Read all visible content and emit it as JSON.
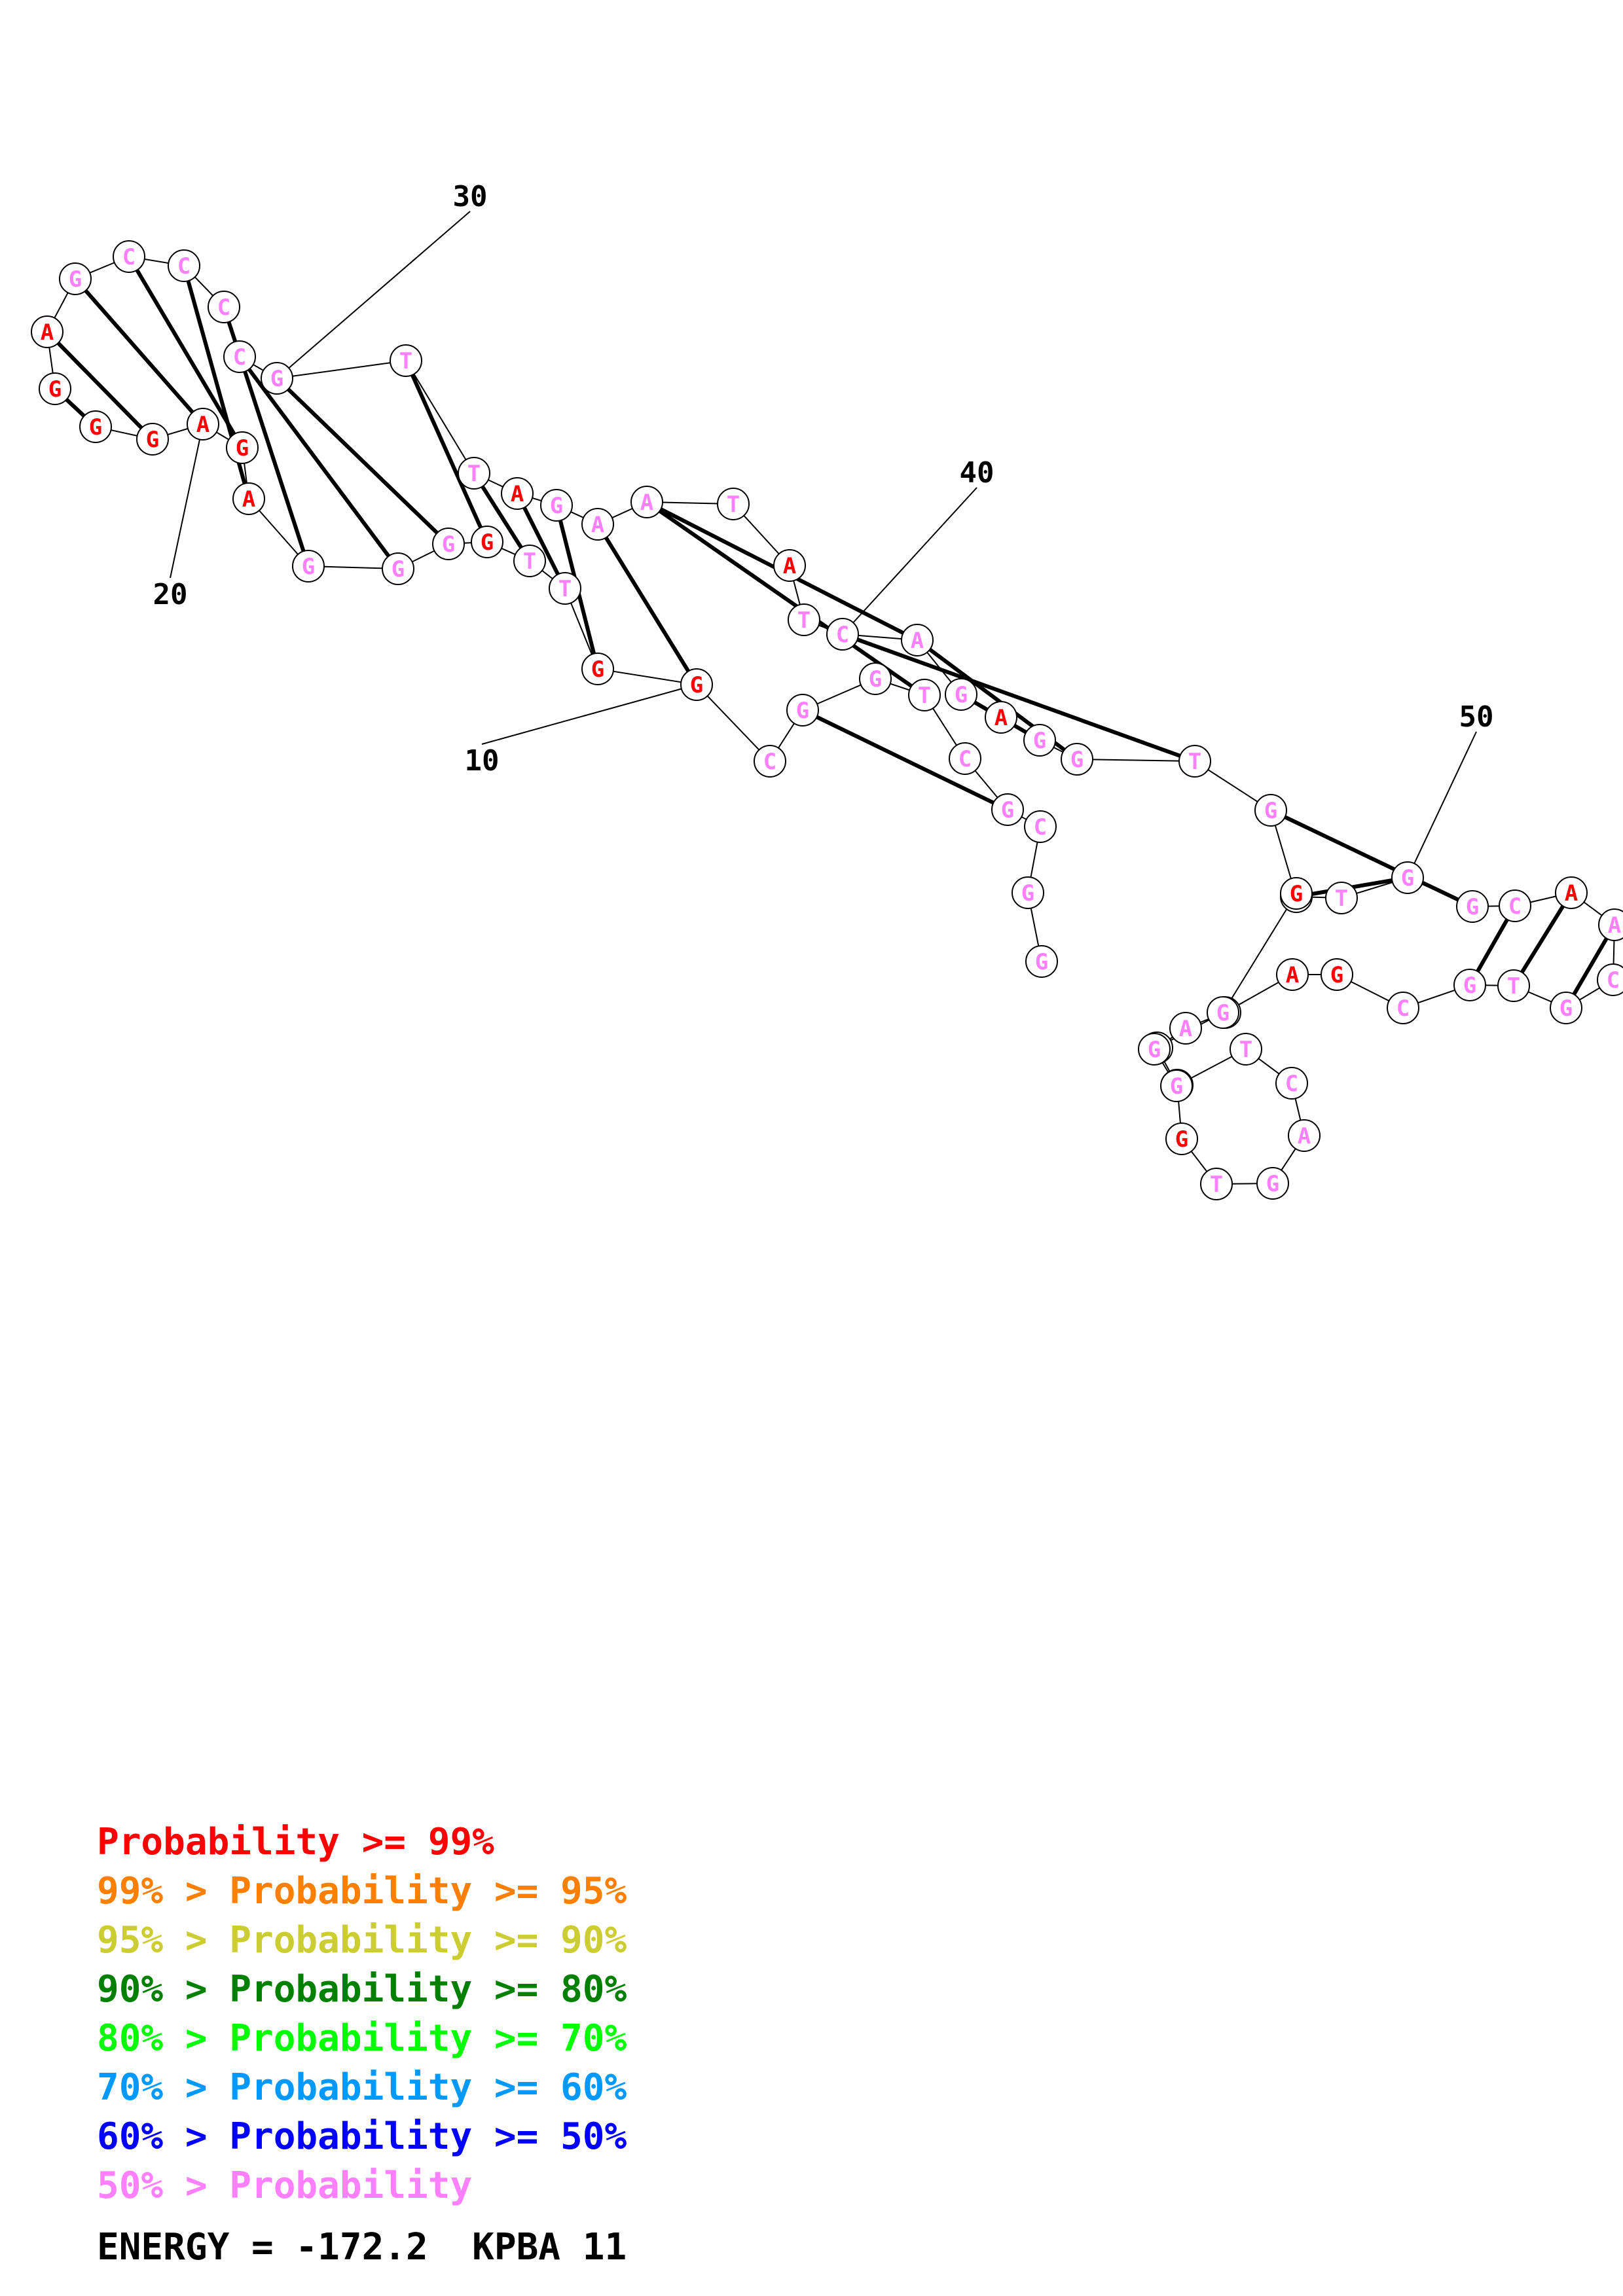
{
  "colors": {
    "p99": "#ff0000",
    "p95": "#ff8000",
    "p90": "#cccc33",
    "p80": "#008000",
    "p70": "#00ff00",
    "p60": "#0099ff",
    "p50": "#0000ff",
    "plow": "#ff80ff",
    "line": "#000000"
  },
  "nucleotides": [
    {
      "base": "G",
      "c": "plow"
    },
    {
      "base": "G",
      "c": "plow"
    },
    {
      "base": "C",
      "c": "plow"
    },
    {
      "base": "G",
      "c": "plow"
    },
    {
      "base": "C",
      "c": "plow"
    },
    {
      "base": "T",
      "c": "plow"
    },
    {
      "base": "G",
      "c": "plow"
    },
    {
      "base": "G",
      "c": "plow"
    },
    {
      "base": "C",
      "c": "plow"
    },
    {
      "base": "G",
      "c": "p99"
    },
    {
      "base": "G",
      "c": "p99"
    },
    {
      "base": "T",
      "c": "plow"
    },
    {
      "base": "T",
      "c": "plow"
    },
    {
      "base": "G",
      "c": "p99"
    },
    {
      "base": "G",
      "c": "plow"
    },
    {
      "base": "G",
      "c": "plow"
    },
    {
      "base": "G",
      "c": "plow"
    },
    {
      "base": "A",
      "c": "p99"
    },
    {
      "base": "G",
      "c": "p99"
    },
    {
      "base": "A",
      "c": "p99"
    },
    {
      "base": "G",
      "c": "p99"
    },
    {
      "base": "G",
      "c": "p99"
    },
    {
      "base": "G",
      "c": "p99"
    },
    {
      "base": "A",
      "c": "p99"
    },
    {
      "base": "G",
      "c": "plow"
    },
    {
      "base": "C",
      "c": "plow"
    },
    {
      "base": "C",
      "c": "plow"
    },
    {
      "base": "C",
      "c": "plow"
    },
    {
      "base": "C",
      "c": "plow"
    },
    {
      "base": "G",
      "c": "plow"
    },
    {
      "base": "T",
      "c": "plow"
    },
    {
      "base": "T",
      "c": "plow"
    },
    {
      "base": "A",
      "c": "p99"
    },
    {
      "base": "G",
      "c": "plow"
    },
    {
      "base": "A",
      "c": "plow"
    },
    {
      "base": "A",
      "c": "plow"
    },
    {
      "base": "T",
      "c": "plow"
    },
    {
      "base": "A",
      "c": "p99"
    },
    {
      "base": "T",
      "c": "plow"
    },
    {
      "base": "C",
      "c": "plow"
    },
    {
      "base": "A",
      "c": "plow"
    },
    {
      "base": "G",
      "c": "plow"
    },
    {
      "base": "A",
      "c": "p99"
    },
    {
      "base": "G",
      "c": "plow"
    },
    {
      "base": "G",
      "c": "plow"
    },
    {
      "base": "T",
      "c": "plow"
    },
    {
      "base": "G",
      "c": "plow"
    },
    {
      "base": "G",
      "c": "plow"
    },
    {
      "base": "T",
      "c": "plow"
    },
    {
      "base": "G",
      "c": "plow"
    },
    {
      "base": "G",
      "c": "plow"
    },
    {
      "base": "C",
      "c": "plow"
    },
    {
      "base": "A",
      "c": "p99"
    },
    {
      "base": "A",
      "c": "plow"
    },
    {
      "base": "C",
      "c": "plow"
    },
    {
      "base": "G",
      "c": "plow"
    },
    {
      "base": "T",
      "c": "plow"
    },
    {
      "base": "G",
      "c": "plow"
    },
    {
      "base": "C",
      "c": "plow"
    },
    {
      "base": "G",
      "c": "p99"
    },
    {
      "base": "A",
      "c": "p99"
    },
    {
      "base": "C",
      "c": "plow"
    },
    {
      "base": "A",
      "c": "plow"
    },
    {
      "base": "G",
      "c": "plow"
    },
    {
      "base": "C",
      "c": "plow"
    },
    {
      "base": "G",
      "c": "p99"
    },
    {
      "base": "T",
      "c": "plow"
    },
    {
      "base": "G",
      "c": "plow"
    },
    {
      "base": "A",
      "c": "plow"
    },
    {
      "base": "C",
      "c": "plow"
    },
    {
      "base": "T",
      "c": "plow"
    },
    {
      "base": "G",
      "c": "plow"
    },
    {
      "base": "G",
      "c": "plow"
    },
    {
      "base": "G",
      "c": "plow"
    },
    {
      "base": "G",
      "c": "p99"
    }
  ],
  "pairs": [
    [
      3,
      7
    ],
    [
      5,
      35
    ],
    [
      9,
      34
    ],
    [
      10,
      33
    ],
    [
      11,
      32
    ],
    [
      12,
      31
    ],
    [
      13,
      30
    ],
    [
      14,
      29
    ],
    [
      15,
      28
    ],
    [
      16,
      27
    ],
    [
      17,
      26
    ],
    [
      18,
      25
    ],
    [
      19,
      24
    ],
    [
      20,
      23
    ],
    [
      21,
      22
    ],
    [
      35,
      40
    ],
    [
      39,
      45
    ],
    [
      40,
      44
    ],
    [
      41,
      43
    ],
    [
      46,
      50
    ],
    [
      47,
      49
    ],
    [
      51,
      57
    ],
    [
      52,
      56
    ],
    [
      53,
      55
    ]
  ],
  "position_labels": [
    {
      "text": "10"
    },
    {
      "text": "20"
    },
    {
      "text": "30"
    },
    {
      "text": "40"
    },
    {
      "text": "50"
    }
  ],
  "legend": [
    {
      "text": "       Probability >= 99%",
      "c": "p99"
    },
    {
      "text": "99% > Probability >= 95%",
      "c": "p95"
    },
    {
      "text": "95% > Probability >= 90%",
      "c": "p90"
    },
    {
      "text": "90% > Probability >= 80%",
      "c": "p80"
    },
    {
      "text": "80% > Probability >= 70%",
      "c": "p70"
    },
    {
      "text": "70% > Probability >= 60%",
      "c": "p60"
    },
    {
      "text": "60% > Probability >= 50%",
      "c": "p50"
    },
    {
      "text": "50% > Probability",
      "c": "plow"
    }
  ],
  "energy": "ENERGY = -172.2  KPBA 11"
}
